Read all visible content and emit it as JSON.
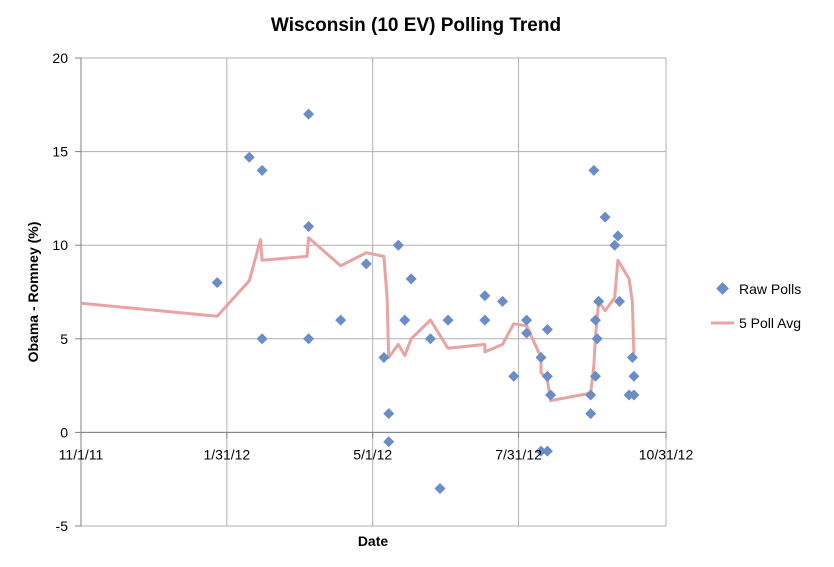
{
  "chart_data": {
    "type": "scatter",
    "title": "Wisconsin (10 EV) Polling Trend",
    "xlabel": "Date",
    "ylabel": "Obama - Romney (%)",
    "x_axis_type": "date",
    "xlim": [
      "2011-11-01",
      "2012-10-31"
    ],
    "ylim": [
      -5,
      20
    ],
    "x_ticks": [
      "11/1/11",
      "1/31/12",
      "5/1/12",
      "7/31/12",
      "10/31/12"
    ],
    "y_ticks": [
      "-5",
      "0",
      "5",
      "10",
      "15",
      "20"
    ],
    "grid": "vertical and horizontal major gridlines",
    "legend_position": "right",
    "colors": {
      "raw_polls": "#6a8cc7",
      "poll_avg": "#e8a3a3",
      "grid": "#b0b0b0",
      "axis": "#808080"
    },
    "series": [
      {
        "name": "Raw Polls",
        "kind": "scatter",
        "marker": "diamond",
        "points": [
          {
            "x": "2012-01-25",
            "y": 8
          },
          {
            "x": "2012-02-14",
            "y": 14.7
          },
          {
            "x": "2012-02-22",
            "y": 14
          },
          {
            "x": "2012-02-22",
            "y": 5
          },
          {
            "x": "2012-03-22",
            "y": 17
          },
          {
            "x": "2012-03-22",
            "y": 11
          },
          {
            "x": "2012-03-22",
            "y": 5
          },
          {
            "x": "2012-04-11",
            "y": 6
          },
          {
            "x": "2012-04-27",
            "y": 9
          },
          {
            "x": "2012-05-08",
            "y": 4
          },
          {
            "x": "2012-05-11",
            "y": 1
          },
          {
            "x": "2012-05-11",
            "y": -0.5
          },
          {
            "x": "2012-05-17",
            "y": 10
          },
          {
            "x": "2012-05-21",
            "y": 6
          },
          {
            "x": "2012-05-25",
            "y": 8.2
          },
          {
            "x": "2012-06-06",
            "y": 5
          },
          {
            "x": "2012-06-12",
            "y": -3
          },
          {
            "x": "2012-06-17",
            "y": 6
          },
          {
            "x": "2012-07-10",
            "y": 7.3
          },
          {
            "x": "2012-07-10",
            "y": 6
          },
          {
            "x": "2012-07-21",
            "y": 7
          },
          {
            "x": "2012-07-28",
            "y": 3
          },
          {
            "x": "2012-08-05",
            "y": 6
          },
          {
            "x": "2012-08-05",
            "y": 5.3
          },
          {
            "x": "2012-08-14",
            "y": 4
          },
          {
            "x": "2012-08-14",
            "y": -1
          },
          {
            "x": "2012-08-18",
            "y": 3
          },
          {
            "x": "2012-08-18",
            "y": -1
          },
          {
            "x": "2012-08-18",
            "y": 5.5
          },
          {
            "x": "2012-08-20",
            "y": 2
          },
          {
            "x": "2012-09-14",
            "y": 2
          },
          {
            "x": "2012-09-14",
            "y": 1
          },
          {
            "x": "2012-09-16",
            "y": 14
          },
          {
            "x": "2012-09-17",
            "y": 6
          },
          {
            "x": "2012-09-17",
            "y": 3
          },
          {
            "x": "2012-09-18",
            "y": 5
          },
          {
            "x": "2012-09-19",
            "y": 7
          },
          {
            "x": "2012-09-23",
            "y": 11.5
          },
          {
            "x": "2012-09-29",
            "y": 10
          },
          {
            "x": "2012-10-01",
            "y": 10.5
          },
          {
            "x": "2012-10-02",
            "y": 7
          },
          {
            "x": "2012-10-08",
            "y": 2
          },
          {
            "x": "2012-10-10",
            "y": 4
          },
          {
            "x": "2012-10-11",
            "y": 3
          },
          {
            "x": "2012-10-11",
            "y": 2
          }
        ]
      },
      {
        "name": "5 Poll Avg",
        "kind": "line",
        "points": [
          {
            "x": "2011-11-01",
            "y": 6.9
          },
          {
            "x": "2012-01-25",
            "y": 6.2
          },
          {
            "x": "2012-02-14",
            "y": 8.1
          },
          {
            "x": "2012-02-21",
            "y": 10.3
          },
          {
            "x": "2012-02-22",
            "y": 9.2
          },
          {
            "x": "2012-03-21",
            "y": 9.4
          },
          {
            "x": "2012-03-22",
            "y": 10.4
          },
          {
            "x": "2012-04-11",
            "y": 8.9
          },
          {
            "x": "2012-04-27",
            "y": 9.6
          },
          {
            "x": "2012-05-08",
            "y": 9.4
          },
          {
            "x": "2012-05-10",
            "y": 7.2
          },
          {
            "x": "2012-05-11",
            "y": 4.0
          },
          {
            "x": "2012-05-17",
            "y": 4.7
          },
          {
            "x": "2012-05-21",
            "y": 4.1
          },
          {
            "x": "2012-05-25",
            "y": 5.0
          },
          {
            "x": "2012-06-06",
            "y": 6.0
          },
          {
            "x": "2012-06-17",
            "y": 4.5
          },
          {
            "x": "2012-07-10",
            "y": 4.7
          },
          {
            "x": "2012-07-10",
            "y": 4.3
          },
          {
            "x": "2012-07-21",
            "y": 4.7
          },
          {
            "x": "2012-07-28",
            "y": 5.8
          },
          {
            "x": "2012-08-05",
            "y": 5.7
          },
          {
            "x": "2012-08-14",
            "y": 4.0
          },
          {
            "x": "2012-08-14",
            "y": 3.2
          },
          {
            "x": "2012-08-18",
            "y": 2.8
          },
          {
            "x": "2012-08-20",
            "y": 1.7
          },
          {
            "x": "2012-09-14",
            "y": 2.1
          },
          {
            "x": "2012-09-16",
            "y": 3.6
          },
          {
            "x": "2012-09-17",
            "y": 5.1
          },
          {
            "x": "2012-09-19",
            "y": 7.0
          },
          {
            "x": "2012-09-23",
            "y": 6.5
          },
          {
            "x": "2012-09-29",
            "y": 7.2
          },
          {
            "x": "2012-10-01",
            "y": 9.2
          },
          {
            "x": "2012-10-08",
            "y": 8.2
          },
          {
            "x": "2012-10-10",
            "y": 7.0
          },
          {
            "x": "2012-10-11",
            "y": 4.2
          }
        ]
      }
    ]
  }
}
